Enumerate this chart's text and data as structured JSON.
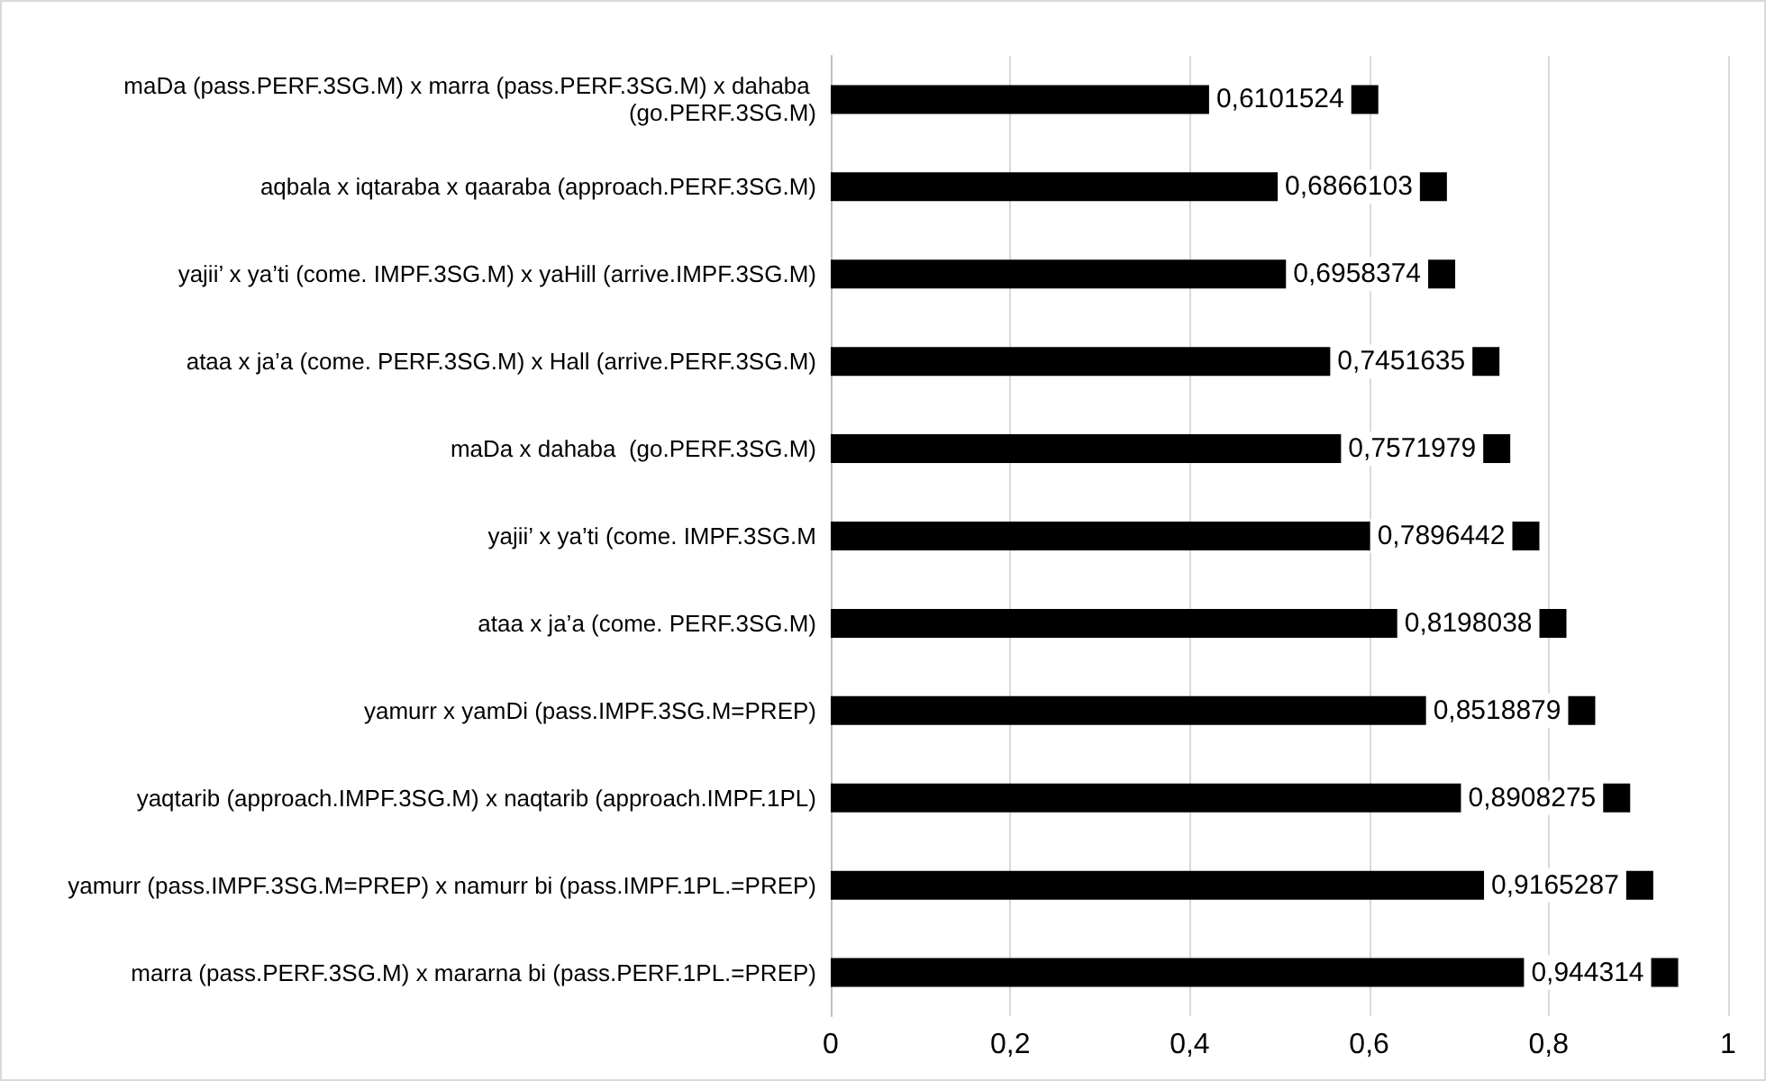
{
  "chart_data": {
    "type": "bar",
    "orientation": "horizontal",
    "categories": [
      "maDa (pass.PERF.3SG.M) x marra (pass.PERF.3SG.M) x dahaba (go.PERF.3SG.M)",
      "aqbala x iqtaraba x qaaraba (approach.PERF.3SG.M)",
      "yajii’ x ya’ti (come. IMPF.3SG.M) x yaHill (arrive.IMPF.3SG.M)",
      "ataa x ja’a (come. PERF.3SG.M) x Hall (arrive.PERF.3SG.M)",
      "maDa x dahaba  (go.PERF.3SG.M)",
      "yajii’ x ya’ti (come. IMPF.3SG.M",
      "ataa x ja’a (come. PERF.3SG.M)",
      "yamurr x yamDi (pass.IMPF.3SG.M=PREP)",
      "yaqtarib (approach.IMPF.3SG.M) x naqtarib (approach.IMPF.1PL)",
      "yamurr (pass.IMPF.3SG.M=PREP) x namurr bi (pass.IMPF.1PL.=PREP)",
      "marra (pass.PERF.3SG.M) x mararna bi (pass.PERF.1PL.=PREP)"
    ],
    "values": [
      0.6101524,
      0.6866103,
      0.6958374,
      0.7451635,
      0.7571979,
      0.7896442,
      0.8198038,
      0.8518879,
      0.8908275,
      0.9165287,
      0.944314
    ],
    "value_labels": [
      "0,6101524",
      "0,6866103",
      "0,6958374",
      "0,7451635",
      "0,7571979",
      "0,7896442",
      "0,8198038",
      "0,8518879",
      "0,8908275",
      "0,9165287",
      "0,944314"
    ],
    "color": "#000000",
    "xlim": [
      0,
      1
    ],
    "xticks": [
      0,
      {
        "value": 0.2,
        "label": "0,2"
      },
      {
        "value": 0.4,
        "label": "0,4"
      },
      {
        "value": 0.6,
        "label": "0,6"
      },
      {
        "value": 0.8,
        "label": "0,8"
      },
      1
    ],
    "grid": "x"
  }
}
